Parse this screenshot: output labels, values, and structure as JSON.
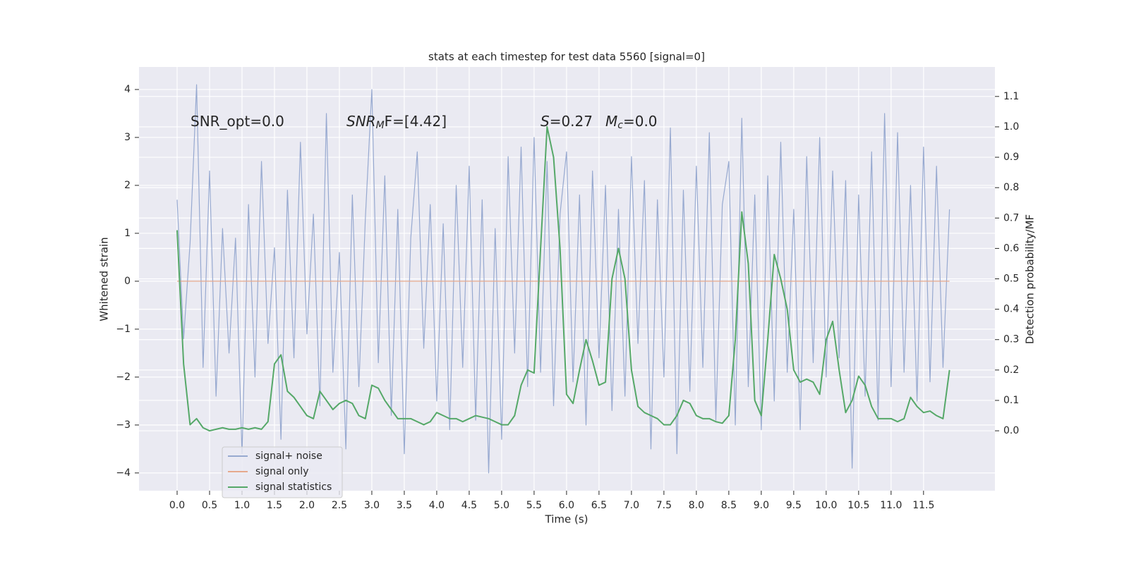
{
  "chart_data": {
    "type": "line",
    "title": "stats at each timestep for test data 5560 [signal=0]",
    "xlabel": "Time (s)",
    "ylabel": "Whitened strain",
    "y2label": "Detection probability/MF",
    "annotations": [
      {
        "text": "SNR_opt=0.0"
      },
      {
        "italic": "SNR",
        "sub": "M",
        "text": "F=[4.42]"
      },
      {
        "italic": "S",
        "text": "=0.27"
      },
      {
        "italic": "M",
        "sub": "c",
        "text": "=0.0"
      }
    ],
    "grid": true,
    "legend": "lower left",
    "xlim": [
      -0.587,
      12.6
    ],
    "ylim": [
      -4.37,
      4.47
    ],
    "y2lim": [
      -0.197,
      1.197
    ],
    "xticks": [
      {
        "value": 0,
        "label": "0.0"
      },
      0.5,
      {
        "value": 1,
        "label": "1.0"
      },
      1.5,
      {
        "value": 2,
        "label": "2.0"
      },
      2.5,
      {
        "value": 3,
        "label": "3.0"
      },
      3.5,
      {
        "value": 4,
        "label": "4.0"
      },
      4.5,
      {
        "value": 5,
        "label": "5.0"
      },
      5.5,
      {
        "value": 6,
        "label": "6.0"
      },
      6.5,
      {
        "value": 7,
        "label": "7.0"
      },
      7.5,
      {
        "value": 8,
        "label": "8.0"
      },
      8.5,
      {
        "value": 9,
        "label": "9.0"
      },
      9.5,
      {
        "value": 10,
        "label": "10.0"
      },
      10.5,
      {
        "value": 11,
        "label": "11.0"
      },
      11.5
    ],
    "yticks": [
      {
        "value": -4,
        "label": "−4"
      },
      {
        "value": -3,
        "label": "−3"
      },
      {
        "value": -2,
        "label": "−2"
      },
      {
        "value": -1,
        "label": "−1"
      },
      0,
      1,
      2,
      3,
      4
    ],
    "y2ticks": [
      {
        "value": 0,
        "label": "0.0"
      },
      0.1,
      0.2,
      0.3,
      0.4,
      0.5,
      0.6,
      0.7,
      0.8,
      0.9,
      {
        "value": 1,
        "label": "1.0"
      },
      1.1
    ],
    "x": [
      0.0,
      0.1,
      0.2,
      0.3,
      0.4,
      0.5,
      0.6,
      0.7,
      0.8,
      0.9,
      1.0,
      1.1,
      1.2,
      1.3,
      1.4,
      1.5,
      1.6,
      1.7,
      1.8,
      1.9,
      2.0,
      2.1,
      2.2,
      2.3,
      2.4,
      2.5,
      2.6,
      2.7,
      2.8,
      2.9,
      3.0,
      3.1,
      3.2,
      3.3,
      3.4,
      3.5,
      3.6,
      3.7,
      3.8,
      3.9,
      4.0,
      4.1,
      4.2,
      4.3,
      4.4,
      4.5,
      4.6,
      4.7,
      4.8,
      4.9,
      5.0,
      5.1,
      5.2,
      5.3,
      5.4,
      5.5,
      5.6,
      5.7,
      5.8,
      5.9,
      6.0,
      6.1,
      6.2,
      6.3,
      6.4,
      6.5,
      6.6,
      6.7,
      6.8,
      6.9,
      7.0,
      7.1,
      7.2,
      7.3,
      7.4,
      7.5,
      7.6,
      7.7,
      7.8,
      7.9,
      8.0,
      8.1,
      8.2,
      8.3,
      8.4,
      8.5,
      8.6,
      8.7,
      8.8,
      8.9,
      9.0,
      9.1,
      9.2,
      9.3,
      9.4,
      9.5,
      9.6,
      9.7,
      9.8,
      9.9,
      10.0,
      10.1,
      10.2,
      10.3,
      10.4,
      10.5,
      10.6,
      10.7,
      10.8,
      10.9,
      11.0,
      11.1,
      11.2,
      11.3,
      11.4,
      11.5,
      11.6,
      11.7,
      11.8,
      11.9
    ],
    "series": [
      {
        "name": "signal+ noise",
        "color": "#97a9d0",
        "values": [
          1.7,
          -1.2,
          0.8,
          4.1,
          -1.8,
          2.3,
          -2.4,
          1.1,
          -1.5,
          0.9,
          -3.6,
          1.6,
          -2.0,
          2.5,
          -1.3,
          0.7,
          -3.3,
          1.9,
          -1.6,
          2.9,
          -1.1,
          1.4,
          -2.6,
          3.5,
          -1.9,
          0.6,
          -3.5,
          1.8,
          -2.2,
          1.3,
          4.0,
          -1.7,
          2.2,
          -2.8,
          1.5,
          -3.6,
          0.9,
          2.7,
          -1.4,
          1.6,
          -2.5,
          1.2,
          -3.1,
          2.0,
          -1.8,
          2.4,
          -2.9,
          1.7,
          -4.0,
          1.1,
          -3.3,
          2.6,
          -1.5,
          2.8,
          -2.2,
          3.0,
          -1.9,
          2.5,
          -2.6,
          1.4,
          2.7,
          -2.1,
          1.8,
          -3.0,
          2.3,
          -1.6,
          2.0,
          -2.7,
          1.5,
          -2.4,
          2.6,
          -1.3,
          2.1,
          -3.5,
          1.7,
          -2.0,
          3.2,
          -3.6,
          1.9,
          -2.3,
          2.4,
          -1.8,
          3.1,
          -2.9,
          1.6,
          2.5,
          -3.0,
          3.4,
          -2.2,
          1.8,
          -3.1,
          2.2,
          -2.5,
          2.9,
          -1.9,
          1.5,
          -3.1,
          2.6,
          -1.7,
          3.0,
          -2.0,
          2.3,
          -1.6,
          2.1,
          -3.9,
          1.8,
          -2.4,
          2.7,
          -2.9,
          3.5,
          -2.2,
          3.1,
          -1.9,
          2.0,
          -2.5,
          2.8,
          -2.1,
          2.4,
          -1.8,
          1.5
        ]
      },
      {
        "name": "signal only",
        "color": "#e6a98d",
        "values": [
          0,
          0,
          0,
          0,
          0,
          0,
          0,
          0,
          0,
          0,
          0,
          0,
          0,
          0,
          0,
          0,
          0,
          0,
          0,
          0,
          0,
          0,
          0,
          0,
          0,
          0,
          0,
          0,
          0,
          0,
          0,
          0,
          0,
          0,
          0,
          0,
          0,
          0,
          0,
          0,
          0,
          0,
          0,
          0,
          0,
          0,
          0,
          0,
          0,
          0,
          0,
          0,
          0,
          0,
          0,
          0,
          0,
          0,
          0,
          0,
          0,
          0,
          0,
          0,
          0,
          0,
          0,
          0,
          0,
          0,
          0,
          0,
          0,
          0,
          0,
          0,
          0,
          0,
          0,
          0,
          0,
          0,
          0,
          0,
          0,
          0,
          0,
          0,
          0,
          0,
          0,
          0,
          0,
          0,
          0,
          0,
          0,
          0,
          0,
          0,
          0,
          0,
          0,
          0,
          0,
          0,
          0,
          0,
          0,
          0,
          0,
          0,
          0,
          0,
          0,
          0,
          0,
          0,
          0,
          0
        ]
      },
      {
        "name": "signal statistics",
        "color": "#55a868",
        "axis": "y2",
        "values": [
          0.66,
          0.22,
          0.02,
          0.04,
          0.01,
          0.0,
          0.005,
          0.01,
          0.005,
          0.005,
          0.01,
          0.005,
          0.01,
          0.005,
          0.03,
          0.22,
          0.25,
          0.13,
          0.11,
          0.08,
          0.05,
          0.04,
          0.13,
          0.1,
          0.07,
          0.09,
          0.1,
          0.09,
          0.05,
          0.04,
          0.15,
          0.14,
          0.1,
          0.07,
          0.04,
          0.04,
          0.04,
          0.03,
          0.02,
          0.03,
          0.06,
          0.05,
          0.04,
          0.04,
          0.03,
          0.04,
          0.05,
          0.045,
          0.04,
          0.03,
          0.02,
          0.02,
          0.05,
          0.15,
          0.2,
          0.19,
          0.6,
          1.0,
          0.9,
          0.6,
          0.12,
          0.09,
          0.2,
          0.3,
          0.23,
          0.15,
          0.16,
          0.5,
          0.6,
          0.5,
          0.2,
          0.08,
          0.06,
          0.05,
          0.04,
          0.02,
          0.02,
          0.05,
          0.1,
          0.09,
          0.05,
          0.04,
          0.04,
          0.03,
          0.025,
          0.05,
          0.3,
          0.72,
          0.55,
          0.1,
          0.05,
          0.3,
          0.58,
          0.5,
          0.4,
          0.2,
          0.16,
          0.17,
          0.16,
          0.12,
          0.3,
          0.36,
          0.2,
          0.06,
          0.1,
          0.18,
          0.15,
          0.08,
          0.04,
          0.04,
          0.04,
          0.03,
          0.04,
          0.11,
          0.08,
          0.06,
          0.065,
          0.05,
          0.04,
          0.2
        ]
      }
    ]
  }
}
